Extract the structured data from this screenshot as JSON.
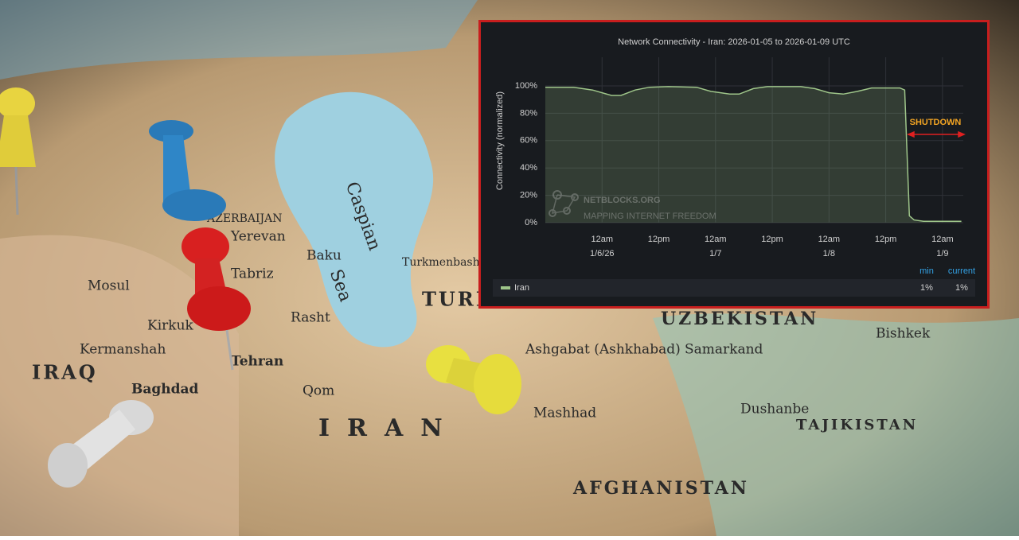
{
  "chart_data": {
    "type": "line",
    "title": "Network Connectivity - Iran: 2026-01-05 to 2026-01-09 UTC",
    "y_label": "Connectivity (normalized)",
    "x": [
      "2026-01-05T12:00",
      "2026-01-05T18:00",
      "2026-01-05T22:00",
      "2026-01-06T02:00",
      "2026-01-06T04:00",
      "2026-01-06T07:00",
      "2026-01-06T10:00",
      "2026-01-06T14:00",
      "2026-01-06T20:00",
      "2026-01-06T23:00",
      "2026-01-07T03:00",
      "2026-01-07T05:00",
      "2026-01-07T08:00",
      "2026-01-07T11:00",
      "2026-01-07T18:00",
      "2026-01-07T21:00",
      "2026-01-08T00:00",
      "2026-01-08T03:00",
      "2026-01-08T06:00",
      "2026-01-08T09:00",
      "2026-01-08T15:00",
      "2026-01-08T16:00",
      "2026-01-08T17:00",
      "2026-01-08T18:00",
      "2026-01-08T20:00",
      "2026-01-09T04:00"
    ],
    "series": [
      {
        "name": "Iran",
        "color": "#9fc68a",
        "values": [
          99,
          99,
          97,
          93,
          93,
          97,
          99,
          99.5,
          99,
          96,
          94,
          94,
          98,
          99.5,
          99.5,
          98,
          95,
          94,
          96,
          98.5,
          98.5,
          97,
          5,
          2,
          1,
          1
        ],
        "stats": [
          {
            "name": "min",
            "value": 1,
            "label": "1%"
          },
          {
            "name": "current",
            "value": 1,
            "label": "1%"
          }
        ]
      }
    ],
    "xlim": [
      "2026-01-05T12:00",
      "2026-01-09T04:24"
    ],
    "xticks": [
      {
        "value": "2026-01-06T00:00",
        "label": [
          "12am",
          "1/6/26"
        ]
      },
      {
        "value": "2026-01-06T12:00",
        "label": [
          "12pm"
        ]
      },
      {
        "value": "2026-01-07T00:00",
        "label": [
          "12am",
          "1/7"
        ]
      },
      {
        "value": "2026-01-07T12:00",
        "label": [
          "12pm"
        ]
      },
      {
        "value": "2026-01-08T00:00",
        "label": [
          "12am",
          "1/8"
        ]
      },
      {
        "value": "2026-01-08T12:00",
        "label": [
          "12pm"
        ]
      },
      {
        "value": "2026-01-09T00:00",
        "label": [
          "12am",
          "1/9"
        ]
      }
    ],
    "ylim": [
      0,
      100
    ],
    "yticks": [
      {
        "value": 0,
        "label": "0%"
      },
      {
        "value": 20,
        "label": "20%"
      },
      {
        "value": 40,
        "label": "40%"
      },
      {
        "value": 60,
        "label": "60%"
      },
      {
        "value": 80,
        "label": "80%"
      },
      {
        "value": 100,
        "label": "100%"
      }
    ],
    "grid": true,
    "annotation": "SHUTDOWN",
    "watermark": {
      "title": "NETBLOCKS.ORG",
      "subtitle": "MAPPING INTERNET FREEDOM"
    }
  },
  "background_map": {
    "labels": [
      "TURKMENISTAN",
      "UZBEKISTAN",
      "TAJIKISTAN",
      "IRAN",
      "IRAQ",
      "AFGHANISTAN",
      "Caspian",
      "Sea",
      "Baku",
      "AZERBAIJAN",
      "Yerevan",
      "Tabriz",
      "Rasht",
      "Tehran",
      "Qom",
      "Mosul",
      "Kirkuk",
      "Baghdad",
      "Kermanshah",
      "Ashgabat (Ashkhabad)",
      "Mashhad",
      "Samarkand",
      "Dushanbe",
      "Bishkek",
      "Turkmenbashi"
    ]
  }
}
